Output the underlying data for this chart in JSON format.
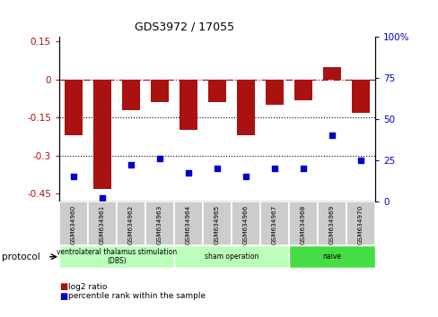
{
  "title": "GDS3972 / 17055",
  "samples": [
    "GSM634960",
    "GSM634961",
    "GSM634962",
    "GSM634963",
    "GSM634964",
    "GSM634965",
    "GSM634966",
    "GSM634967",
    "GSM634968",
    "GSM634969",
    "GSM634970"
  ],
  "log2_ratio": [
    -0.22,
    -0.43,
    -0.12,
    -0.09,
    -0.2,
    -0.09,
    -0.22,
    -0.1,
    -0.08,
    0.05,
    -0.13
  ],
  "percentile_rank": [
    15,
    2,
    22,
    26,
    17,
    20,
    15,
    20,
    20,
    40,
    25
  ],
  "bar_color": "#aa1111",
  "dot_color": "#0000cc",
  "left_ylim": [
    -0.48,
    0.17
  ],
  "right_ylim": [
    0,
    100
  ],
  "left_yticks": [
    -0.45,
    -0.3,
    -0.15,
    0.0,
    0.15
  ],
  "right_yticks": [
    0,
    25,
    50,
    75,
    100
  ],
  "hline_y": [
    0.0,
    -0.15,
    -0.3
  ],
  "protocol_groups": [
    {
      "label": "ventrolateral thalamus stimulation\n(DBS)",
      "start": 0,
      "end": 3,
      "color": "#bbffbb"
    },
    {
      "label": "sham operation",
      "start": 4,
      "end": 7,
      "color": "#bbffbb"
    },
    {
      "label": "naive",
      "start": 8,
      "end": 10,
      "color": "#44dd44"
    }
  ],
  "legend_bar_label": "log2 ratio",
  "legend_dot_label": "percentile rank within the sample",
  "protocol_label": "protocol"
}
